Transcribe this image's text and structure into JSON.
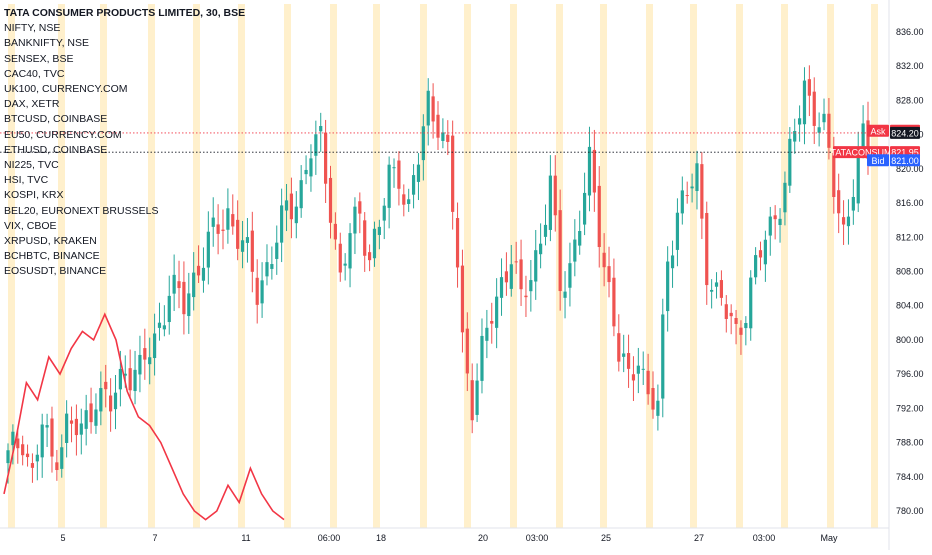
{
  "legend": {
    "title": "TATA CONSUMER PRODUCTS LIMITED, 30, BSE",
    "symbols": [
      "NIFTY, NSE",
      "BANKNIFTY, NSE",
      "SENSEX, BSE",
      "CAC40, TVC",
      "UK100, CURRENCY.COM",
      "DAX, XETR",
      "BTCUSD, COINBASE",
      "EU50, CURRENCY.COM",
      "ETHUSD, COINBASE",
      "NI225, TVC",
      "HSI, TVC",
      "KOSPI, KRX",
      "BEL20, EURONEXT BRUSSELS",
      "VIX, CBOE",
      "XRPUSD, KRAKEN",
      "BCHBTC, BINANCE",
      "EOSUSDT, BINANCE"
    ]
  },
  "price_tags": [
    {
      "label": "Ask",
      "value": "824.45",
      "color": "#f23645",
      "y": 824.45
    },
    {
      "label": "",
      "value": "824.20",
      "color": "#131722",
      "y": 824.2
    },
    {
      "label": "TATACONSUM",
      "value": "821.95",
      "color": "#f23645",
      "y": 821.95
    },
    {
      "label": "Bid",
      "value": "821.00",
      "color": "#2962ff",
      "y": 821.0
    }
  ],
  "colors": {
    "up": "#26a69a",
    "down": "#ef5350",
    "comparison_line": "#f23645",
    "session_highlight": "#fff0cc",
    "ask": "#f23645",
    "bid": "#2962ff"
  },
  "chart_data": {
    "type": "candlestick",
    "title": "TATA CONSUMER PRODUCTS LIMITED, 30, BSE",
    "ylim": [
      778,
      838
    ],
    "y_ticks": [
      780,
      784,
      788,
      792,
      796,
      800,
      804,
      808,
      812,
      816,
      820,
      824,
      828,
      832,
      836
    ],
    "x_ticks": [
      "5",
      "7",
      "11",
      "06:00",
      "18",
      "20",
      "03:00",
      "25",
      "27",
      "03:00",
      "May"
    ],
    "grid": false,
    "legend_position": "top-left",
    "ohlc_anchors": [
      [
        0,
        786
      ],
      [
        3,
        789
      ],
      [
        5,
        784
      ],
      [
        7,
        790
      ],
      [
        9,
        786
      ],
      [
        12,
        790
      ],
      [
        15,
        789
      ],
      [
        18,
        794
      ],
      [
        21,
        792
      ],
      [
        24,
        797
      ],
      [
        27,
        796
      ],
      [
        30,
        800
      ],
      [
        33,
        806
      ],
      [
        36,
        804
      ],
      [
        39,
        809
      ],
      [
        42,
        812
      ],
      [
        45,
        815
      ],
      [
        48,
        811
      ],
      [
        51,
        806
      ],
      [
        54,
        810
      ],
      [
        57,
        815
      ],
      [
        60,
        818
      ],
      [
        62,
        822
      ],
      [
        64,
        823
      ],
      [
        66,
        816
      ],
      [
        68,
        807
      ],
      [
        70,
        812
      ],
      [
        72,
        815
      ],
      [
        74,
        810
      ],
      [
        76,
        813
      ],
      [
        78,
        819
      ],
      [
        80,
        820
      ],
      [
        82,
        815
      ],
      [
        84,
        821
      ],
      [
        86,
        828
      ],
      [
        88,
        826
      ],
      [
        90,
        821
      ],
      [
        92,
        809
      ],
      [
        93,
        800
      ],
      [
        95,
        793
      ],
      [
        97,
        798
      ],
      [
        99,
        803
      ],
      [
        101,
        807
      ],
      [
        103,
        810
      ],
      [
        105,
        804
      ],
      [
        107,
        808
      ],
      [
        109,
        812
      ],
      [
        111,
        818
      ],
      [
        113,
        806
      ],
      [
        115,
        809
      ],
      [
        117,
        814
      ],
      [
        119,
        820
      ],
      [
        121,
        813
      ],
      [
        123,
        806
      ],
      [
        125,
        798
      ],
      [
        127,
        795
      ],
      [
        129,
        799
      ],
      [
        131,
        793
      ],
      [
        133,
        792
      ],
      [
        135,
        810
      ],
      [
        137,
        815
      ],
      [
        139,
        817
      ],
      [
        141,
        819
      ],
      [
        143,
        809
      ],
      [
        145,
        805
      ],
      [
        147,
        803
      ],
      [
        149,
        801
      ],
      [
        151,
        804
      ],
      [
        153,
        808
      ],
      [
        155,
        812
      ],
      [
        157,
        815
      ],
      [
        159,
        818
      ],
      [
        161,
        824
      ],
      [
        163,
        830
      ],
      [
        165,
        827
      ],
      [
        167,
        824
      ],
      [
        169,
        818
      ],
      [
        171,
        813
      ],
      [
        173,
        818
      ],
      [
        175,
        823
      ],
      [
        176,
        822
      ]
    ],
    "comparison_series": {
      "style": "line",
      "points": [
        [
          0,
          782
        ],
        [
          2,
          788
        ],
        [
          4,
          795
        ],
        [
          6,
          793
        ],
        [
          8,
          798
        ],
        [
          10,
          796
        ],
        [
          12,
          799
        ],
        [
          14,
          801
        ],
        [
          16,
          800
        ],
        [
          18,
          803
        ],
        [
          20,
          800
        ],
        [
          22,
          794
        ],
        [
          24,
          791
        ],
        [
          26,
          790
        ],
        [
          28,
          788
        ],
        [
          30,
          785
        ],
        [
          32,
          782
        ],
        [
          34,
          780
        ],
        [
          36,
          779
        ],
        [
          38,
          780
        ],
        [
          40,
          783
        ],
        [
          42,
          781
        ],
        [
          44,
          785
        ],
        [
          46,
          782
        ],
        [
          48,
          780
        ],
        [
          50,
          779
        ]
      ]
    }
  },
  "x_labels": [
    "5",
    "7",
    "11",
    "06:00",
    "18",
    "20",
    "03:00",
    "25",
    "27",
    "03:00",
    "May"
  ]
}
